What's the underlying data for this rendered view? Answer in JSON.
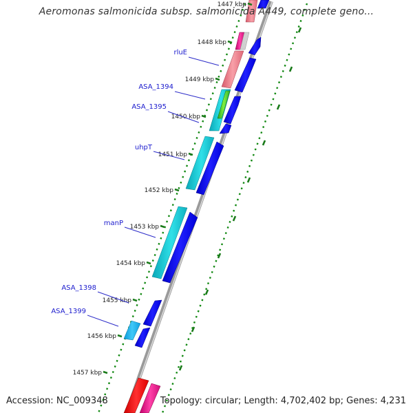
{
  "title": "Aeromonas salmonicida subsp. salmonicida A449, complete geno...",
  "footer": {
    "accession": "Accession: NC_009348",
    "summary": "Topology: circular; Length: 4,702,402 bp; Genes: 4,231"
  },
  "colors": {
    "backbone": "#8c8c8c",
    "forward_strand": "#0000ee",
    "reverse_cds": "#10bcc8",
    "rrna_red": "#ff0000",
    "pink": "#f07080",
    "magenta": "#e0108a",
    "green_dots": "#118811",
    "label_blue": "#1a1acd",
    "tick_green": "#1a7a1a"
  },
  "ticks": [
    {
      "label": "1447 kbp"
    },
    {
      "label": "1448 kbp"
    },
    {
      "label": "1449 kbp"
    },
    {
      "label": "1450 kbp"
    },
    {
      "label": "1451 kbp"
    },
    {
      "label": "1452 kbp"
    },
    {
      "label": "1453 kbp"
    },
    {
      "label": "1454 kbp"
    },
    {
      "label": "1455 kbp"
    },
    {
      "label": "1456 kbp"
    },
    {
      "label": "1457 kbp"
    }
  ],
  "gene_labels": [
    {
      "name": "rluE"
    },
    {
      "name": "ASA_1394"
    },
    {
      "name": "ASA_1395"
    },
    {
      "name": "uhpT"
    },
    {
      "name": "manP"
    },
    {
      "name": "ASA_1398"
    },
    {
      "name": "ASA_1399"
    }
  ]
}
